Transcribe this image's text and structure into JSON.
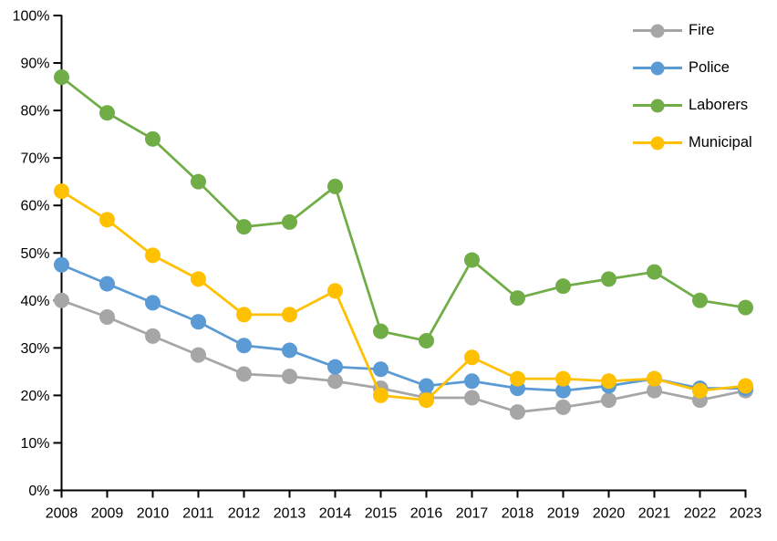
{
  "chart_data": {
    "type": "line",
    "title": "",
    "xlabel": "",
    "ylabel": "",
    "grid": false,
    "background": "#FFFFFF",
    "axis_color": "#000000",
    "text_color": "#000000",
    "legend_position": "top-right",
    "ylim": [
      0,
      100
    ],
    "ytick_step": 10,
    "y_tick_labels": [
      "0%",
      "10%",
      "20%",
      "30%",
      "40%",
      "50%",
      "60%",
      "70%",
      "80%",
      "90%",
      "100%"
    ],
    "categories": [
      "2008",
      "2009",
      "2010",
      "2011",
      "2012",
      "2013",
      "2014",
      "2015",
      "2016",
      "2017",
      "2018",
      "2019",
      "2020",
      "2021",
      "2022",
      "2023"
    ],
    "series": [
      {
        "name": "Fire",
        "color": "#A6A6A6",
        "values": [
          40,
          36.5,
          32.5,
          28.5,
          24.5,
          24,
          23,
          21.5,
          19.5,
          19.5,
          16.5,
          17.5,
          19,
          21,
          19,
          21
        ]
      },
      {
        "name": "Police",
        "color": "#5B9BD5",
        "values": [
          47.5,
          43.5,
          39.5,
          35.5,
          30.5,
          29.5,
          26,
          25.5,
          22,
          23,
          21.5,
          21,
          22,
          23.5,
          21.5,
          21.5
        ]
      },
      {
        "name": "Laborers",
        "color": "#70AD47",
        "values": [
          87,
          79.5,
          74,
          65,
          55.5,
          56.5,
          64,
          33.5,
          31.5,
          48.5,
          40.5,
          43,
          44.5,
          46,
          40,
          38.5
        ]
      },
      {
        "name": "Municipal",
        "color": "#FFC000",
        "values": [
          63,
          57,
          49.5,
          44.5,
          37,
          37,
          42,
          20,
          19,
          28,
          23.5,
          23.5,
          23,
          23.5,
          21,
          22
        ]
      }
    ]
  }
}
